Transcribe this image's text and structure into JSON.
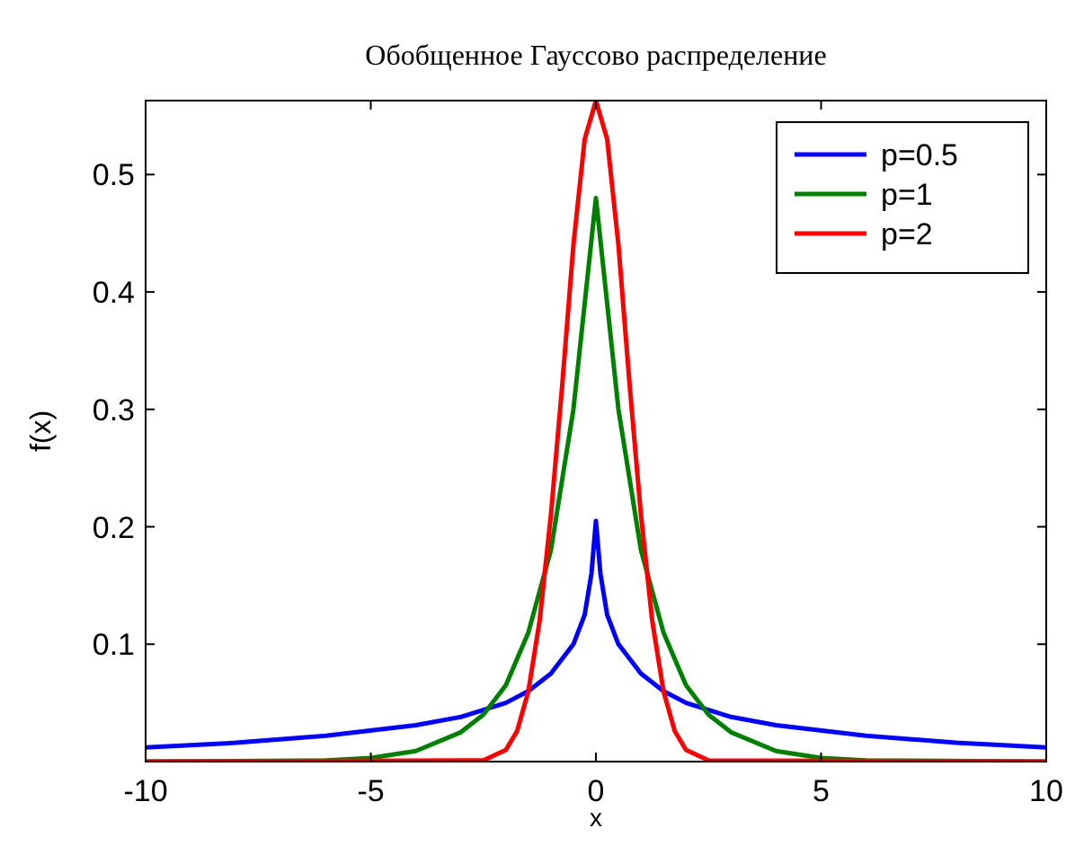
{
  "chart_data": {
    "type": "line",
    "title": "Обобщенное Гауссово распределение",
    "xlabel": "x",
    "ylabel": "f(x)",
    "xlim": [
      -10,
      10
    ],
    "ylim": [
      0,
      0.563
    ],
    "xticks": [
      -10,
      -5,
      0,
      5,
      10
    ],
    "yticks": [
      0.1,
      0.2,
      0.3,
      0.4,
      0.5
    ],
    "grid": false,
    "legend": "top right",
    "marker": "none",
    "line_style": "solid",
    "series": [
      {
        "name": "p=0.5",
        "color": "#0000ff",
        "x": [
          -10,
          -8,
          -6,
          -4,
          -3,
          -2,
          -1.5,
          -1,
          -0.5,
          -0.25,
          -0.1,
          0,
          0.1,
          0.25,
          0.5,
          1,
          1.5,
          2,
          3,
          4,
          6,
          8,
          10
        ],
        "values": [
          0.012,
          0.016,
          0.022,
          0.031,
          0.038,
          0.05,
          0.06,
          0.075,
          0.1,
          0.125,
          0.16,
          0.205,
          0.16,
          0.125,
          0.1,
          0.075,
          0.06,
          0.05,
          0.038,
          0.031,
          0.022,
          0.016,
          0.012
        ]
      },
      {
        "name": "p=1",
        "color": "#008000",
        "x": [
          -10,
          -6,
          -5,
          -4,
          -3,
          -2.5,
          -2,
          -1.5,
          -1,
          -0.5,
          -0.25,
          0,
          0.25,
          0.5,
          1,
          1.5,
          2,
          2.5,
          3,
          4,
          5,
          6,
          10
        ],
        "values": [
          0,
          0.001,
          0.003,
          0.009,
          0.025,
          0.04,
          0.065,
          0.11,
          0.18,
          0.3,
          0.39,
          0.48,
          0.39,
          0.3,
          0.18,
          0.11,
          0.065,
          0.04,
          0.025,
          0.009,
          0.003,
          0.001,
          0
        ]
      },
      {
        "name": "p=2",
        "color": "#ff0000",
        "x": [
          -10,
          -2.5,
          -2,
          -1.75,
          -1.5,
          -1.25,
          -1,
          -0.75,
          -0.5,
          -0.25,
          0,
          0.25,
          0.5,
          0.75,
          1,
          1.25,
          1.5,
          1.75,
          2,
          2.5,
          10
        ],
        "values": [
          0,
          0.001,
          0.01,
          0.026,
          0.06,
          0.12,
          0.21,
          0.32,
          0.44,
          0.53,
          0.563,
          0.53,
          0.44,
          0.32,
          0.21,
          0.12,
          0.06,
          0.026,
          0.01,
          0.001,
          0
        ]
      }
    ]
  }
}
